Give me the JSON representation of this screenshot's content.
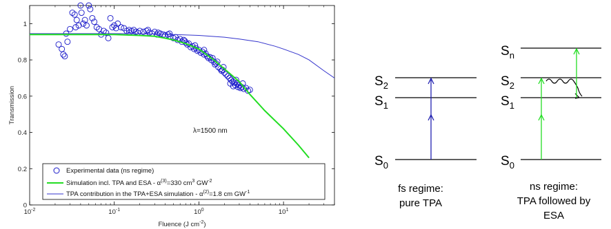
{
  "chart_data": {
    "type": "scatter",
    "x_scale": "log",
    "xlabel_prefix": "Fluence (J cm",
    "xlabel_sup": "-2",
    "xlabel_suffix": ")",
    "ylabel": "Transmission",
    "xlim": [
      0.01,
      40
    ],
    "ylim": [
      0,
      1.1
    ],
    "x_ticks": [
      {
        "base": "10",
        "exp": "-2"
      },
      {
        "base": "10",
        "exp": "-1"
      },
      {
        "base": "10",
        "exp": "0"
      },
      {
        "base": "10",
        "exp": "1"
      }
    ],
    "y_ticks": [
      "0",
      "0.2",
      "0.4",
      "0.6",
      "0.8",
      "1"
    ],
    "annotation": "λ=1500 nm",
    "legend_location": "bottom-left",
    "series": [
      {
        "name": "Experimental data (ns regime)",
        "kind": "markers",
        "marker": "circle",
        "color": "#1515c8",
        "points": [
          [
            0.022,
            0.885
          ],
          [
            0.024,
            0.86
          ],
          [
            0.025,
            0.83
          ],
          [
            0.026,
            0.82
          ],
          [
            0.027,
            0.945
          ],
          [
            0.028,
            0.9
          ],
          [
            0.03,
            0.97
          ],
          [
            0.032,
            1.06
          ],
          [
            0.034,
            1.05
          ],
          [
            0.035,
            0.98
          ],
          [
            0.036,
            1.02
          ],
          [
            0.038,
            0.99
          ],
          [
            0.04,
            1.1
          ],
          [
            0.041,
            1.06
          ],
          [
            0.043,
            1.0
          ],
          [
            0.045,
            1.02
          ],
          [
            0.047,
            0.99
          ],
          [
            0.05,
            1.1
          ],
          [
            0.052,
            1.08
          ],
          [
            0.055,
            1.03
          ],
          [
            0.058,
            1.01
          ],
          [
            0.062,
            0.98
          ],
          [
            0.066,
            0.97
          ],
          [
            0.07,
            0.94
          ],
          [
            0.075,
            0.96
          ],
          [
            0.08,
            0.95
          ],
          [
            0.085,
            0.92
          ],
          [
            0.09,
            1.03
          ],
          [
            0.095,
            0.98
          ],
          [
            0.1,
            0.99
          ],
          [
            0.105,
            0.975
          ],
          [
            0.11,
            1.0
          ],
          [
            0.12,
            0.98
          ],
          [
            0.13,
            0.975
          ],
          [
            0.14,
            0.96
          ],
          [
            0.15,
            0.95
          ],
          [
            0.16,
            0.96
          ],
          [
            0.17,
            0.965
          ],
          [
            0.18,
            0.955
          ],
          [
            0.19,
            0.95
          ],
          [
            0.2,
            0.96
          ],
          [
            0.22,
            0.955
          ],
          [
            0.24,
            0.96
          ],
          [
            0.26,
            0.95
          ],
          [
            0.28,
            0.945
          ],
          [
            0.3,
            0.955
          ],
          [
            0.32,
            0.94
          ],
          [
            0.35,
            0.945
          ],
          [
            0.38,
            0.94
          ],
          [
            0.4,
            0.935
          ],
          [
            0.43,
            0.94
          ],
          [
            0.46,
            0.93
          ],
          [
            0.5,
            0.92
          ],
          [
            0.53,
            0.925
          ],
          [
            0.56,
            0.91
          ],
          [
            0.6,
            0.915
          ],
          [
            0.63,
            0.9
          ],
          [
            0.66,
            0.91
          ],
          [
            0.7,
            0.895
          ],
          [
            0.73,
            0.885
          ],
          [
            0.76,
            0.89
          ],
          [
            0.8,
            0.87
          ],
          [
            0.84,
            0.875
          ],
          [
            0.88,
            0.86
          ],
          [
            0.92,
            0.865
          ],
          [
            0.96,
            0.85
          ],
          [
            1.0,
            0.855
          ],
          [
            1.05,
            0.84
          ],
          [
            1.1,
            0.845
          ],
          [
            1.15,
            0.83
          ],
          [
            1.2,
            0.835
          ],
          [
            1.25,
            0.82
          ],
          [
            1.3,
            0.81
          ],
          [
            1.35,
            0.815
          ],
          [
            1.4,
            0.8
          ],
          [
            1.5,
            0.79
          ],
          [
            1.55,
            0.775
          ],
          [
            1.6,
            0.78
          ],
          [
            1.7,
            0.76
          ],
          [
            1.8,
            0.75
          ],
          [
            1.85,
            0.74
          ],
          [
            1.9,
            0.745
          ],
          [
            2.0,
            0.73
          ],
          [
            2.1,
            0.72
          ],
          [
            2.2,
            0.71
          ],
          [
            2.3,
            0.7
          ],
          [
            2.4,
            0.69
          ],
          [
            2.5,
            0.68
          ],
          [
            2.6,
            0.675
          ],
          [
            2.7,
            0.66
          ],
          [
            2.8,
            0.67
          ],
          [
            2.9,
            0.65
          ],
          [
            3.0,
            0.66
          ],
          [
            3.1,
            0.645
          ],
          [
            3.2,
            0.65
          ],
          [
            3.4,
            0.64
          ],
          [
            3.6,
            0.645
          ],
          [
            3.8,
            0.63
          ],
          [
            4.0,
            0.635
          ],
          [
            2.35,
            0.67
          ],
          [
            2.55,
            0.655
          ],
          [
            2.75,
            0.69
          ],
          [
            3.3,
            0.67
          ],
          [
            1.95,
            0.76
          ],
          [
            1.65,
            0.79
          ],
          [
            1.45,
            0.81
          ],
          [
            1.15,
            0.855
          ],
          [
            0.9,
            0.88
          ],
          [
            0.68,
            0.905
          ],
          [
            0.45,
            0.945
          ],
          [
            0.33,
            0.95
          ],
          [
            0.25,
            0.965
          ],
          [
            0.15,
            0.965
          ]
        ]
      },
      {
        "name_prefix": "Simulation incl. TPA and ESA - α",
        "name_sup1": "(3)",
        "name_mid": "=330 cm",
        "name_sup2": "3",
        "name_mid2": " GW",
        "name_sup3": "-2",
        "kind": "line",
        "color": "#22dd22",
        "x": [
          0.01,
          0.05,
          0.1,
          0.2,
          0.3,
          0.4,
          0.5,
          0.7,
          1.0,
          1.5,
          2.0,
          3.0,
          4.0,
          6.0,
          10.0,
          15.0,
          20.0
        ],
        "y": [
          0.94,
          0.94,
          0.94,
          0.935,
          0.93,
          0.92,
          0.91,
          0.89,
          0.86,
          0.8,
          0.75,
          0.68,
          0.61,
          0.52,
          0.42,
          0.33,
          0.26
        ]
      },
      {
        "name_prefix": "TPA contribution in the TPA+ESA simulation - α",
        "name_sup1": "(2)",
        "name_mid": "=1.8 cm GW",
        "name_sup2": "-1",
        "kind": "line",
        "color": "#3333cc",
        "x": [
          0.01,
          0.1,
          0.3,
          0.5,
          1.0,
          2.0,
          3.0,
          5.0,
          8.0,
          10.0,
          15.0,
          20.0,
          30.0,
          40.0
        ],
        "y": [
          0.945,
          0.945,
          0.943,
          0.94,
          0.935,
          0.925,
          0.915,
          0.9,
          0.875,
          0.86,
          0.83,
          0.8,
          0.74,
          0.7
        ]
      }
    ]
  },
  "jablonski": {
    "fs": {
      "levels": {
        "s2": "S2",
        "s1": "S1",
        "s0": "S0"
      },
      "s2_sub": "2",
      "s1_sub": "1",
      "s0_sub": "0",
      "caption_line1": "fs regime:",
      "caption_line2": "pure TPA",
      "arrow_color": "#2020b0"
    },
    "ns": {
      "sn_sub": "n",
      "s2_sub": "2",
      "s1_sub": "1",
      "s0_sub": "0",
      "caption_line1": "ns regime:",
      "caption_line2": "TPA  followed by",
      "caption_line3": "ESA",
      "arrow_color": "#22dd22"
    },
    "level_letter": "S"
  }
}
